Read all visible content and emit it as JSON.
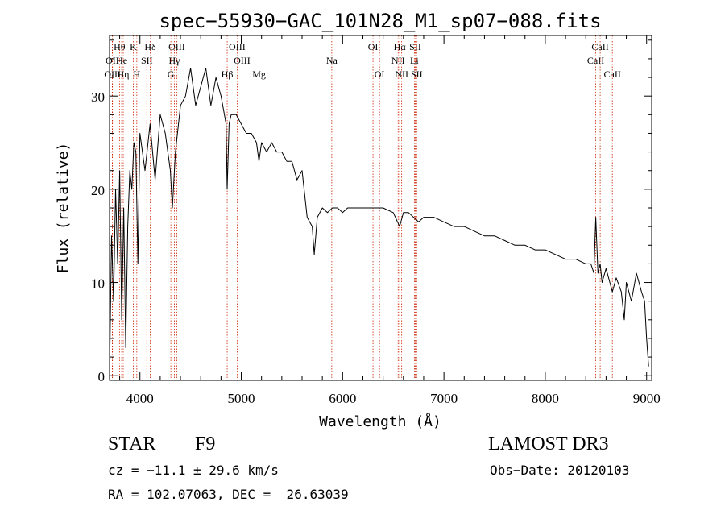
{
  "chart_data": {
    "type": "line",
    "title": "spec−55930−GAC_101N28_M1_sp07−088.fits",
    "xlabel": "Wavelength (Å)",
    "ylabel": "Flux (relative)",
    "xlim": [
      3700,
      9050
    ],
    "ylim": [
      -0.5,
      36.5
    ],
    "xticks": [
      4000,
      5000,
      6000,
      7000,
      8000,
      9000
    ],
    "yticks": [
      0,
      10,
      20,
      30
    ],
    "grid": false,
    "series": [
      {
        "name": "flux",
        "x": [
          3700,
          3720,
          3740,
          3760,
          3780,
          3800,
          3820,
          3840,
          3860,
          3880,
          3900,
          3920,
          3940,
          3960,
          3980,
          4000,
          4050,
          4100,
          4150,
          4200,
          4250,
          4300,
          4320,
          4350,
          4400,
          4450,
          4500,
          4550,
          4600,
          4650,
          4700,
          4750,
          4800,
          4850,
          4861,
          4880,
          4900,
          4950,
          5000,
          5050,
          5100,
          5150,
          5175,
          5200,
          5250,
          5300,
          5350,
          5400,
          5450,
          5500,
          5550,
          5600,
          5650,
          5700,
          5720,
          5750,
          5800,
          5850,
          5900,
          5950,
          6000,
          6050,
          6100,
          6200,
          6300,
          6400,
          6500,
          6563,
          6600,
          6650,
          6700,
          6750,
          6800,
          6900,
          7000,
          7100,
          7200,
          7300,
          7400,
          7500,
          7600,
          7700,
          7800,
          7900,
          8000,
          8100,
          8200,
          8300,
          8400,
          8450,
          8480,
          8498,
          8520,
          8542,
          8560,
          8600,
          8662,
          8700,
          8750,
          8780,
          8800,
          8850,
          8900,
          8950,
          8980,
          9000,
          9020
        ],
        "y": [
          0,
          15,
          8,
          20,
          12,
          22,
          6,
          18,
          3,
          16,
          22,
          20,
          25,
          24,
          12,
          26,
          22,
          27,
          21,
          28,
          26,
          22,
          18,
          24,
          29,
          30,
          33,
          29,
          31,
          33,
          29,
          32,
          30,
          27,
          20,
          27,
          28,
          28,
          27,
          26,
          26,
          25,
          23,
          25,
          24,
          25,
          24,
          24,
          23,
          23,
          21,
          22,
          17,
          16,
          13,
          17,
          18,
          17.5,
          18,
          18,
          17.5,
          18,
          18,
          18,
          18,
          18,
          17.5,
          16,
          17.5,
          17.5,
          17,
          16.5,
          17,
          17,
          16.5,
          16,
          16,
          15.5,
          15,
          15,
          14.5,
          14,
          14,
          13.5,
          13.5,
          13,
          12.5,
          12.5,
          12,
          12,
          11,
          17,
          11,
          12,
          10,
          11.5,
          9,
          10.5,
          9,
          6,
          10,
          8,
          11,
          9,
          8,
          4,
          1
        ]
      }
    ],
    "lines": [
      {
        "label": "Hθ",
        "x": 3798,
        "row": 1
      },
      {
        "label": "OII",
        "x": 3727,
        "row": 2
      },
      {
        "label": "OIII",
        "x": 3729,
        "row": 3
      },
      {
        "label": "He",
        "x": 3820,
        "row": 2
      },
      {
        "label": "Hη",
        "x": 3835,
        "row": 3
      },
      {
        "label": "K",
        "x": 3934,
        "row": 1
      },
      {
        "label": "SII",
        "x": 4068,
        "row": 2
      },
      {
        "label": "H",
        "x": 3969,
        "row": 3
      },
      {
        "label": "Hδ",
        "x": 4102,
        "row": 1
      },
      {
        "label": "OIII",
        "x": 4363,
        "row": 1
      },
      {
        "label": "Hγ",
        "x": 4340,
        "row": 2
      },
      {
        "label": "G",
        "x": 4305,
        "row": 3
      },
      {
        "label": "OIII",
        "x": 4959,
        "row": 1
      },
      {
        "label": "OIII",
        "x": 5007,
        "row": 2
      },
      {
        "label": "Hβ",
        "x": 4861,
        "row": 3
      },
      {
        "label": "Mg",
        "x": 5175,
        "row": 3
      },
      {
        "label": "Na",
        "x": 5893,
        "row": 2
      },
      {
        "label": "OI",
        "x": 6300,
        "row": 1
      },
      {
        "label": "OI",
        "x": 6364,
        "row": 3
      },
      {
        "label": "Hα",
        "x": 6563,
        "row": 1
      },
      {
        "label": "NII",
        "x": 6548,
        "row": 2
      },
      {
        "label": "NII",
        "x": 6583,
        "row": 3
      },
      {
        "label": "SII",
        "x": 6717,
        "row": 1
      },
      {
        "label": "Li",
        "x": 6708,
        "row": 2
      },
      {
        "label": "SII",
        "x": 6731,
        "row": 3
      },
      {
        "label": "CaII",
        "x": 8542,
        "row": 1
      },
      {
        "label": "CaII",
        "x": 8498,
        "row": 2
      },
      {
        "label": "CaII",
        "x": 8662,
        "row": 3
      }
    ]
  },
  "info": {
    "object_class": "STAR",
    "subclass": "F9",
    "survey": "LAMOST DR3",
    "redshift": "cz = −11.1 ± 29.6 km/s",
    "obs_date": "Obs−Date: 20120103",
    "coords": "RA = 102.07063, DEC =  26.63039"
  },
  "colors": {
    "axes": "#000000",
    "line_marker": "#cc2200",
    "spectrum": "#000000"
  }
}
